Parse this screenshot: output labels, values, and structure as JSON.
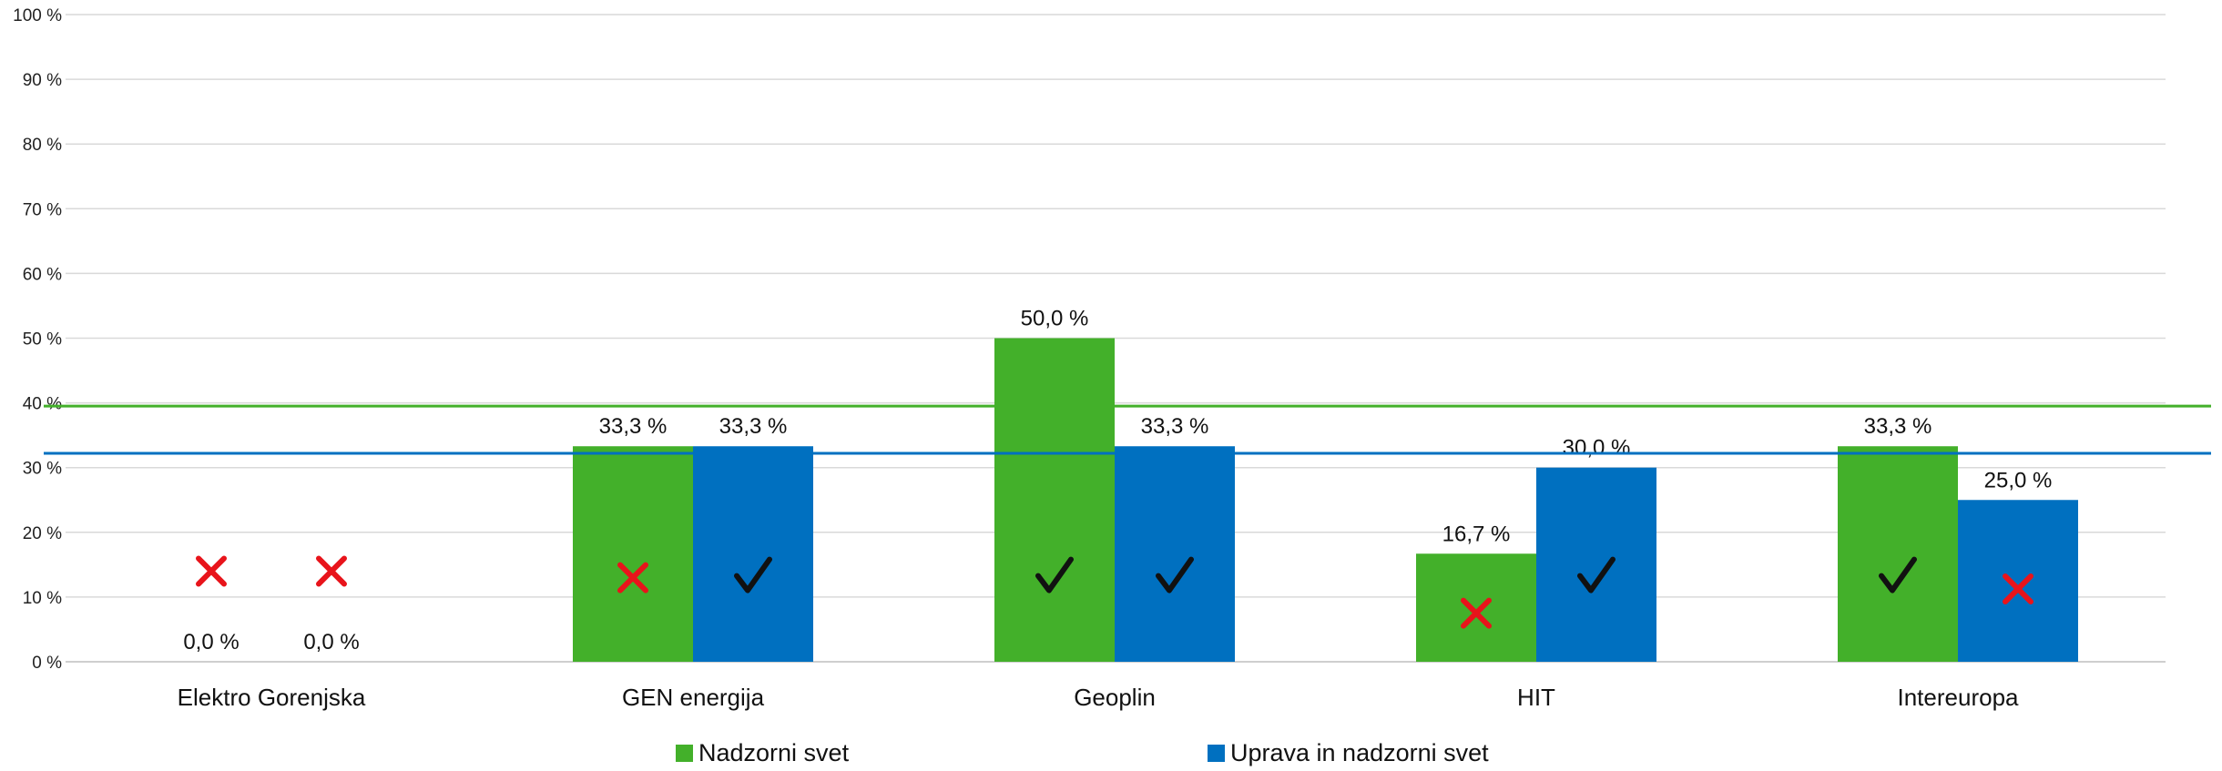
{
  "chart_data": {
    "type": "bar",
    "categories": [
      "Elektro Gorenjska",
      "GEN energija",
      "Geoplin",
      "HIT",
      "Intereuropa"
    ],
    "series": [
      {
        "name": "Nadzorni svet",
        "color": "#43B02A",
        "values": [
          0.0,
          33.3,
          50.0,
          16.7,
          33.3
        ],
        "labels": [
          "0,0 %",
          "33,3 %",
          "50,0 %",
          "16,7 %",
          "33,3 %"
        ],
        "marks": [
          "cross-icon",
          "cross-icon",
          "check-icon",
          "cross-icon",
          "check-icon"
        ]
      },
      {
        "name": "Uprava in nadzorni svet",
        "color": "#0070C0",
        "values": [
          0.0,
          33.3,
          33.3,
          30.0,
          25.0
        ],
        "labels": [
          "0,0 %",
          "33,3 %",
          "33,3 %",
          "30,0 %",
          "25,0 %"
        ],
        "marks": [
          "cross-icon",
          "check-icon",
          "check-icon",
          "check-icon",
          "cross-icon"
        ]
      }
    ],
    "reference_lines": [
      {
        "series": "Nadzorni svet",
        "value": 39.5,
        "color": "#43B02A"
      },
      {
        "series": "Uprava in nadzorni svet",
        "value": 32.2,
        "color": "#0070C0"
      }
    ],
    "ylim": [
      0,
      100
    ],
    "yticks": [
      "0 %",
      "10 %",
      "20 %",
      "30 %",
      "40 %",
      "50 %",
      "60 %",
      "70 %",
      "80 %",
      "90 %",
      "100 %"
    ],
    "grid": true,
    "legend": "bottom",
    "title": "",
    "xlabel": "",
    "ylabel": "",
    "mark_colors": {
      "cross-icon": "#E8141B",
      "check-icon": "#111111"
    }
  }
}
